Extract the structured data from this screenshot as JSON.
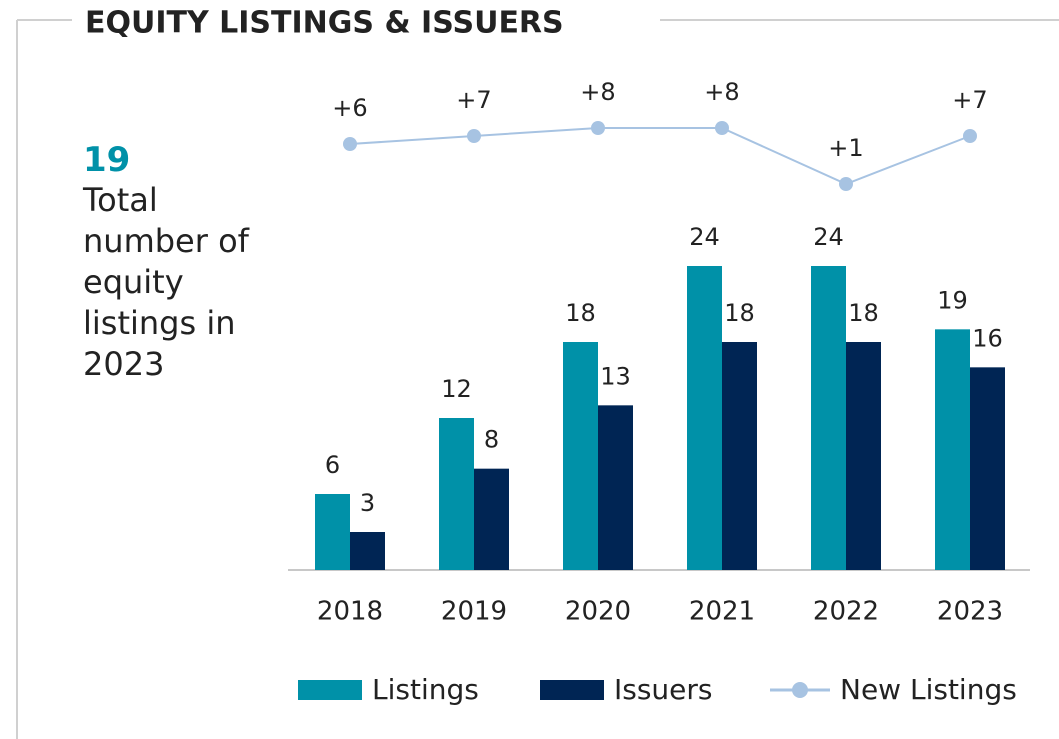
{
  "chart_data": {
    "type": "bar",
    "title": "EQUITY LISTINGS & ISSUERS",
    "highlight": {
      "value": 19,
      "text": "Total number of equity listings in 2023"
    },
    "categories": [
      "2018",
      "2019",
      "2020",
      "2021",
      "2022",
      "2023"
    ],
    "ylim": [
      0,
      24
    ],
    "y2lim": [
      0,
      8
    ],
    "legend": "bottom",
    "series": [
      {
        "name": "Listings",
        "type": "bar",
        "color": "#0091a8",
        "values": [
          6,
          12,
          18,
          24,
          24,
          19
        ]
      },
      {
        "name": "Issuers",
        "type": "bar",
        "color": "#002554",
        "values": [
          3,
          8,
          13,
          18,
          18,
          16
        ]
      },
      {
        "name": "New Listings",
        "type": "line",
        "axis": "y2",
        "color": "#a7c3e2",
        "values": [
          6,
          7,
          8,
          8,
          1,
          7
        ],
        "value_labels": [
          "+6",
          "+7",
          "+8",
          "+8",
          "+1",
          "+7"
        ]
      }
    ]
  }
}
